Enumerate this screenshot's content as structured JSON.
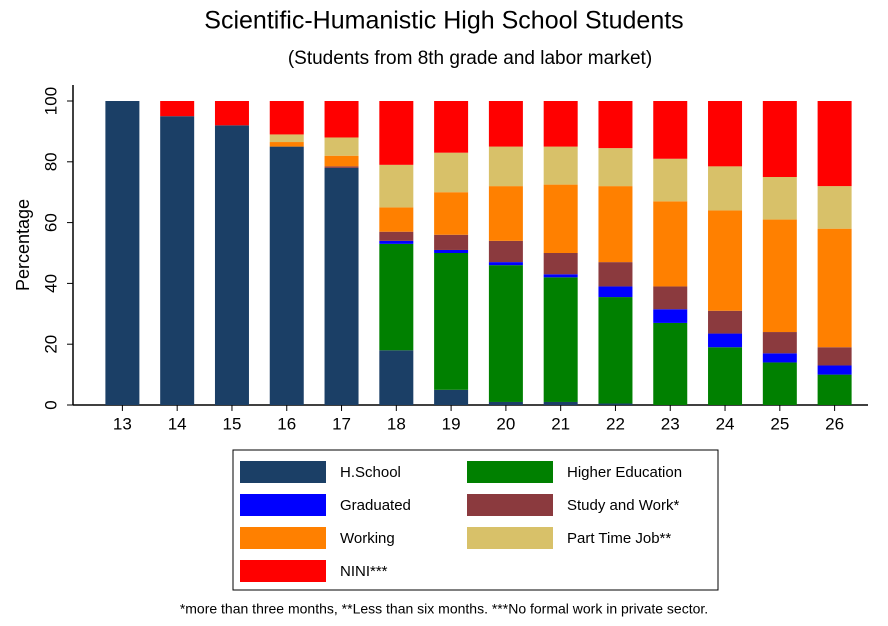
{
  "chart_data": {
    "type": "stacked_bar",
    "title": "Scientific-Humanistic High School Students",
    "subtitle": "(Students from 8th grade and labor market)",
    "y_label": "Percentage",
    "footnote": "*more than three months, **Less than six months. ***No formal work in private sector.",
    "categories": [
      "13",
      "14",
      "15",
      "16",
      "17",
      "18",
      "19",
      "20",
      "21",
      "22",
      "23",
      "24",
      "25",
      "26"
    ],
    "ylim": [
      0,
      100
    ],
    "yticks": [
      0,
      20,
      40,
      60,
      80,
      100
    ],
    "series": [
      {
        "name": "H.School",
        "color": "#1b3f66",
        "values": [
          100,
          95,
          92,
          85,
          78,
          18,
          5,
          1,
          1,
          0.5,
          0,
          0,
          0,
          0
        ]
      },
      {
        "name": "Higher Education",
        "color": "#008000",
        "values": [
          0,
          0,
          0,
          0,
          0,
          35,
          45,
          45,
          41,
          35,
          27,
          19,
          14,
          10
        ]
      },
      {
        "name": "Graduated",
        "color": "#0000ff",
        "values": [
          0,
          0,
          0,
          0,
          0,
          1,
          1,
          1,
          1,
          3.5,
          4.5,
          4.5,
          3,
          3
        ]
      },
      {
        "name": "Study and Work*",
        "color": "#8b3a3e",
        "values": [
          0,
          0,
          0,
          0,
          0.5,
          3,
          5,
          7,
          7,
          8,
          7.5,
          7.5,
          7,
          6
        ]
      },
      {
        "name": "Working",
        "color": "#ff8000",
        "values": [
          0,
          0,
          0,
          1.5,
          3.5,
          8,
          14,
          18,
          22.5,
          25,
          28,
          33,
          37,
          39
        ]
      },
      {
        "name": "Part Time Job**",
        "color": "#d8c169",
        "values": [
          0,
          0,
          0,
          2.5,
          6,
          14,
          13,
          13,
          12.5,
          12.5,
          14,
          14.5,
          14,
          14
        ]
      },
      {
        "name": "NINI***",
        "color": "#ff0000",
        "values": [
          0,
          5,
          8,
          11,
          12,
          21,
          17,
          15,
          15,
          15.5,
          19,
          21.5,
          25,
          28
        ]
      }
    ]
  }
}
